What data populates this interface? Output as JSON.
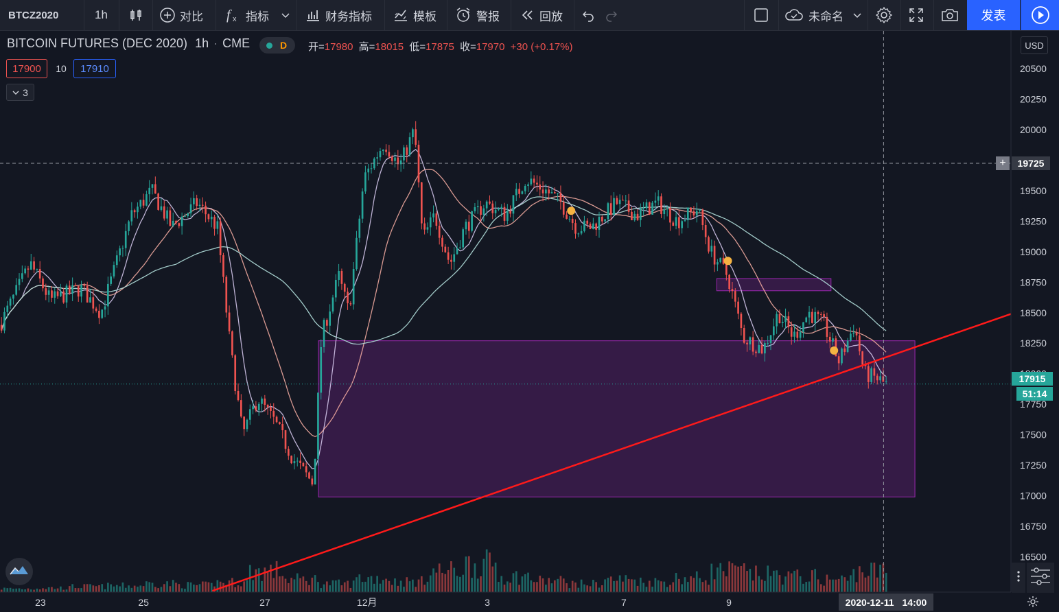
{
  "toolbar": {
    "symbol": "BTCZ2020",
    "interval": "1h",
    "compare": "对比",
    "indicators": "指标",
    "financials": "财务指标",
    "templates": "模板",
    "alert": "警报",
    "replay": "回放",
    "layout_name": "未命名",
    "publish": "发表"
  },
  "legend": {
    "title": "BITCOIN FUTURES (DEC 2020)",
    "interval": "1h",
    "exchange": "CME",
    "badge": "D",
    "open_label": "开=",
    "open": "17980",
    "high_label": "高=",
    "high": "18015",
    "low_label": "低=",
    "low": "17875",
    "close_label": "收=",
    "close": "17970",
    "change": "+30 (+0.17%)",
    "bid": "17900",
    "spread": "10",
    "ask": "17910",
    "indicators_count": "3"
  },
  "price_axis": {
    "currency": "USD",
    "crosshair_price": "19725",
    "last_price": "17915",
    "countdown": "51:14"
  },
  "time_axis": {
    "crosshair_date": "2020-12-11",
    "crosshair_time": "14:00"
  },
  "colors": {
    "background": "#131722",
    "up": "#26a69a",
    "down": "#ef5350",
    "trendline": "#ff1a1a",
    "zone_fill": "#4a1e5c",
    "zone_border": "#9c27b0",
    "ma_fast": "#d1c4e9",
    "ma_mid": "#f0a89e",
    "ma_slow": "#b2dfdb",
    "marker": "#f5b342",
    "publish_bg": "#2962ff"
  },
  "chart_data": {
    "type": "candlestick",
    "title": "BITCOIN FUTURES (DEC 2020)",
    "interval": "1h",
    "y_ticks": [
      16500,
      16750,
      17000,
      17250,
      17500,
      17750,
      18000,
      18250,
      18500,
      18750,
      19000,
      19250,
      19500,
      19750,
      20000,
      20250,
      20500
    ],
    "ylim": [
      16210,
      20810
    ],
    "x_ticks": [
      {
        "label": "23",
        "t": 0.04
      },
      {
        "label": "25",
        "t": 0.142
      },
      {
        "label": "27",
        "t": 0.262
      },
      {
        "label": "12月",
        "t": 0.363
      },
      {
        "label": "3",
        "t": 0.482
      },
      {
        "label": "7",
        "t": 0.617
      },
      {
        "label": "9",
        "t": 0.721
      }
    ],
    "anchors": [
      [
        0.0,
        18400
      ],
      [
        0.03,
        18900
      ],
      [
        0.05,
        18600
      ],
      [
        0.08,
        18700
      ],
      [
        0.1,
        18500
      ],
      [
        0.13,
        19300
      ],
      [
        0.15,
        19500
      ],
      [
        0.17,
        19200
      ],
      [
        0.195,
        19400
      ],
      [
        0.215,
        19200
      ],
      [
        0.228,
        18200
      ],
      [
        0.24,
        17500
      ],
      [
        0.255,
        17800
      ],
      [
        0.272,
        17600
      ],
      [
        0.29,
        17300
      ],
      [
        0.31,
        17100
      ],
      [
        0.318,
        18300
      ],
      [
        0.335,
        18800
      ],
      [
        0.345,
        18500
      ],
      [
        0.36,
        19600
      ],
      [
        0.38,
        19900
      ],
      [
        0.395,
        19700
      ],
      [
        0.41,
        20000
      ],
      [
        0.418,
        19100
      ],
      [
        0.43,
        19300
      ],
      [
        0.445,
        18900
      ],
      [
        0.46,
        19200
      ],
      [
        0.48,
        19400
      ],
      [
        0.5,
        19300
      ],
      [
        0.52,
        19600
      ],
      [
        0.54,
        19500
      ],
      [
        0.555,
        19400
      ],
      [
        0.57,
        19200
      ],
      [
        0.585,
        19200
      ],
      [
        0.61,
        19400
      ],
      [
        0.63,
        19300
      ],
      [
        0.65,
        19400
      ],
      [
        0.67,
        19250
      ],
      [
        0.69,
        19350
      ],
      [
        0.703,
        19000
      ],
      [
        0.72,
        18800
      ],
      [
        0.735,
        18300
      ],
      [
        0.755,
        18200
      ],
      [
        0.77,
        18500
      ],
      [
        0.785,
        18300
      ],
      [
        0.8,
        18500
      ],
      [
        0.815,
        18400
      ],
      [
        0.83,
        18100
      ],
      [
        0.845,
        18400
      ],
      [
        0.855,
        18000
      ],
      [
        0.87,
        17950
      ],
      [
        0.875,
        17915
      ]
    ],
    "volume_levels": [
      0.05,
      0.06,
      0.08,
      0.09,
      0.12,
      0.1,
      0.14,
      0.3,
      0.18,
      0.12,
      0.2,
      0.15,
      0.3,
      0.4,
      0.22,
      0.16,
      0.12,
      0.18,
      0.15,
      0.2,
      0.3,
      0.25,
      0.22,
      0.18,
      0.3
    ],
    "series": [
      {
        "name": "",
        "color": "#d1c4e9",
        "type": "ma",
        "period": 8
      },
      {
        "name": "",
        "color": "#f0a89e",
        "type": "ma",
        "period": 24
      },
      {
        "name": "",
        "color": "#b2dfdb",
        "type": "ma",
        "period": 60
      }
    ],
    "zones": [
      {
        "t0": 0.315,
        "t1": 0.905,
        "p0": 18270,
        "p1": 16990
      },
      {
        "t0": 0.709,
        "t1": 0.822,
        "p0": 18780,
        "p1": 18680
      }
    ],
    "trendline": {
      "t0": 0.21,
      "p0": 16220,
      "t1": 1.0,
      "p1": 18490
    },
    "markers": [
      {
        "t": 0.565,
        "p": 19335
      },
      {
        "t": 0.72,
        "p": 18925
      },
      {
        "t": 0.825,
        "p": 18190
      }
    ],
    "crosshair": {
      "t": 0.874,
      "p": 19725
    },
    "last_price": 17915,
    "visible_range": [
      0.0,
      0.878
    ]
  }
}
